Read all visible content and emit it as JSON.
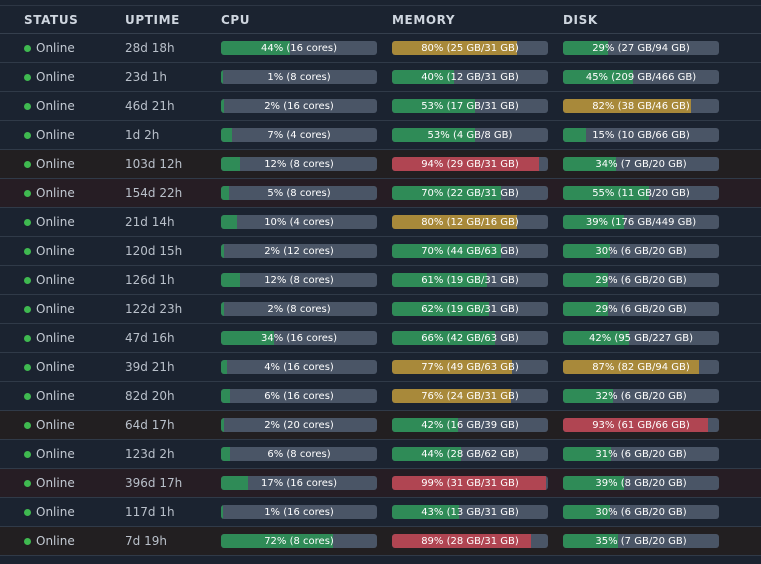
{
  "headers": {
    "status": "STATUS",
    "uptime": "UPTIME",
    "cpu": "CPU",
    "memory": "MEMORY",
    "disk": "DISK"
  },
  "colors": {
    "ok": "#2f8b57",
    "warning": "#a8893a",
    "critical": "#b04552",
    "online_dot": "#3fb950"
  },
  "rows": [
    {
      "status": "Online",
      "uptime": "28d 18h",
      "cpu": {
        "label": "44% (16 cores)",
        "pct": 44,
        "level": "green"
      },
      "memory": {
        "label": "80% (25 GB/31 GB)",
        "pct": 80,
        "level": "amber"
      },
      "disk": {
        "label": "29% (27 GB/94 GB)",
        "pct": 29,
        "level": "green"
      },
      "tint": ""
    },
    {
      "status": "Online",
      "uptime": "23d 1h",
      "cpu": {
        "label": "1% (8 cores)",
        "pct": 1,
        "level": "green"
      },
      "memory": {
        "label": "40% (12 GB/31 GB)",
        "pct": 40,
        "level": "green"
      },
      "disk": {
        "label": "45% (209 GB/466 GB)",
        "pct": 45,
        "level": "green"
      },
      "tint": ""
    },
    {
      "status": "Online",
      "uptime": "46d 21h",
      "cpu": {
        "label": "2% (16 cores)",
        "pct": 2,
        "level": "green"
      },
      "memory": {
        "label": "53% (17 GB/31 GB)",
        "pct": 53,
        "level": "green"
      },
      "disk": {
        "label": "82% (38 GB/46 GB)",
        "pct": 82,
        "level": "amber"
      },
      "tint": ""
    },
    {
      "status": "Online",
      "uptime": "1d 2h",
      "cpu": {
        "label": "7% (4 cores)",
        "pct": 7,
        "level": "green"
      },
      "memory": {
        "label": "53% (4 GB/8 GB)",
        "pct": 53,
        "level": "green"
      },
      "disk": {
        "label": "15% (10 GB/66 GB)",
        "pct": 15,
        "level": "green"
      },
      "tint": ""
    },
    {
      "status": "Online",
      "uptime": "103d 12h",
      "cpu": {
        "label": "12% (8 cores)",
        "pct": 12,
        "level": "green"
      },
      "memory": {
        "label": "94% (29 GB/31 GB)",
        "pct": 94,
        "level": "red"
      },
      "disk": {
        "label": "34% (7 GB/20 GB)",
        "pct": 34,
        "level": "green"
      },
      "tint": "warn"
    },
    {
      "status": "Online",
      "uptime": "154d 22h",
      "cpu": {
        "label": "5% (8 cores)",
        "pct": 5,
        "level": "green"
      },
      "memory": {
        "label": "70% (22 GB/31 GB)",
        "pct": 70,
        "level": "green"
      },
      "disk": {
        "label": "55% (11 GB/20 GB)",
        "pct": 55,
        "level": "green"
      },
      "tint": "crit"
    },
    {
      "status": "Online",
      "uptime": "21d 14h",
      "cpu": {
        "label": "10% (4 cores)",
        "pct": 10,
        "level": "green"
      },
      "memory": {
        "label": "80% (12 GB/16 GB)",
        "pct": 80,
        "level": "amber"
      },
      "disk": {
        "label": "39% (176 GB/449 GB)",
        "pct": 39,
        "level": "green"
      },
      "tint": ""
    },
    {
      "status": "Online",
      "uptime": "120d 15h",
      "cpu": {
        "label": "2% (12 cores)",
        "pct": 2,
        "level": "green"
      },
      "memory": {
        "label": "70% (44 GB/63 GB)",
        "pct": 70,
        "level": "green"
      },
      "disk": {
        "label": "30% (6 GB/20 GB)",
        "pct": 30,
        "level": "green"
      },
      "tint": ""
    },
    {
      "status": "Online",
      "uptime": "126d 1h",
      "cpu": {
        "label": "12% (8 cores)",
        "pct": 12,
        "level": "green"
      },
      "memory": {
        "label": "61% (19 GB/31 GB)",
        "pct": 61,
        "level": "green"
      },
      "disk": {
        "label": "29% (6 GB/20 GB)",
        "pct": 29,
        "level": "green"
      },
      "tint": ""
    },
    {
      "status": "Online",
      "uptime": "122d 23h",
      "cpu": {
        "label": "2% (8 cores)",
        "pct": 2,
        "level": "green"
      },
      "memory": {
        "label": "62% (19 GB/31 GB)",
        "pct": 62,
        "level": "green"
      },
      "disk": {
        "label": "29% (6 GB/20 GB)",
        "pct": 29,
        "level": "green"
      },
      "tint": ""
    },
    {
      "status": "Online",
      "uptime": "47d 16h",
      "cpu": {
        "label": "34% (16 cores)",
        "pct": 34,
        "level": "green"
      },
      "memory": {
        "label": "66% (42 GB/63 GB)",
        "pct": 66,
        "level": "green"
      },
      "disk": {
        "label": "42% (95 GB/227 GB)",
        "pct": 42,
        "level": "green"
      },
      "tint": ""
    },
    {
      "status": "Online",
      "uptime": "39d 21h",
      "cpu": {
        "label": "4% (16 cores)",
        "pct": 4,
        "level": "green"
      },
      "memory": {
        "label": "77% (49 GB/63 GB)",
        "pct": 77,
        "level": "amber"
      },
      "disk": {
        "label": "87% (82 GB/94 GB)",
        "pct": 87,
        "level": "amber"
      },
      "tint": ""
    },
    {
      "status": "Online",
      "uptime": "82d 20h",
      "cpu": {
        "label": "6% (16 cores)",
        "pct": 6,
        "level": "green"
      },
      "memory": {
        "label": "76% (24 GB/31 GB)",
        "pct": 76,
        "level": "amber"
      },
      "disk": {
        "label": "32% (6 GB/20 GB)",
        "pct": 32,
        "level": "green"
      },
      "tint": ""
    },
    {
      "status": "Online",
      "uptime": "64d 17h",
      "cpu": {
        "label": "2% (20 cores)",
        "pct": 2,
        "level": "green"
      },
      "memory": {
        "label": "42% (16 GB/39 GB)",
        "pct": 42,
        "level": "green"
      },
      "disk": {
        "label": "93% (61 GB/66 GB)",
        "pct": 93,
        "level": "red"
      },
      "tint": "warn"
    },
    {
      "status": "Online",
      "uptime": "123d 2h",
      "cpu": {
        "label": "6% (8 cores)",
        "pct": 6,
        "level": "green"
      },
      "memory": {
        "label": "44% (28 GB/62 GB)",
        "pct": 44,
        "level": "green"
      },
      "disk": {
        "label": "31% (6 GB/20 GB)",
        "pct": 31,
        "level": "green"
      },
      "tint": ""
    },
    {
      "status": "Online",
      "uptime": "396d 17h",
      "cpu": {
        "label": "17% (16 cores)",
        "pct": 17,
        "level": "green"
      },
      "memory": {
        "label": "99% (31 GB/31 GB)",
        "pct": 99,
        "level": "red"
      },
      "disk": {
        "label": "39% (8 GB/20 GB)",
        "pct": 39,
        "level": "green"
      },
      "tint": "crit"
    },
    {
      "status": "Online",
      "uptime": "117d 1h",
      "cpu": {
        "label": "1% (16 cores)",
        "pct": 1,
        "level": "green"
      },
      "memory": {
        "label": "43% (13 GB/31 GB)",
        "pct": 43,
        "level": "green"
      },
      "disk": {
        "label": "30% (6 GB/20 GB)",
        "pct": 30,
        "level": "green"
      },
      "tint": ""
    },
    {
      "status": "Online",
      "uptime": "7d 19h",
      "cpu": {
        "label": "72% (8 cores)",
        "pct": 72,
        "level": "green"
      },
      "memory": {
        "label": "89% (28 GB/31 GB)",
        "pct": 89,
        "level": "red"
      },
      "disk": {
        "label": "35% (7 GB/20 GB)",
        "pct": 35,
        "level": "green"
      },
      "tint": "warn"
    }
  ]
}
